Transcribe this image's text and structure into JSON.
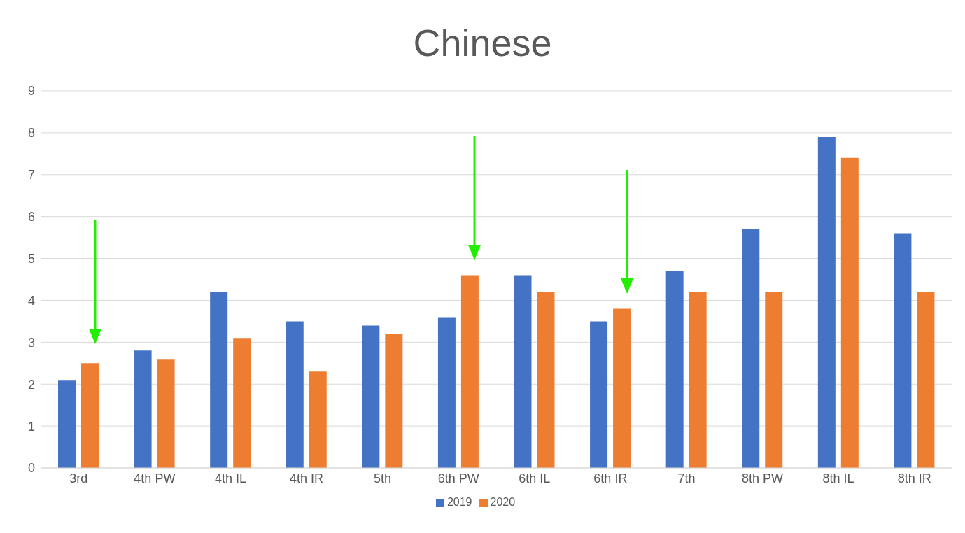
{
  "chart_data": {
    "type": "bar",
    "title": "Chinese",
    "categories": [
      "3rd",
      "4th PW",
      "4th IL",
      "4th IR",
      "5th",
      "6th PW",
      "6th IL",
      "6th IR",
      "7th",
      "8th PW",
      "8th IL",
      "8th IR"
    ],
    "series": [
      {
        "name": "2019",
        "color": "#4472c4",
        "values": [
          2.1,
          2.8,
          4.2,
          3.5,
          3.4,
          3.6,
          4.6,
          3.5,
          4.7,
          5.7,
          7.9,
          5.6
        ]
      },
      {
        "name": "2020",
        "color": "#ed7d31",
        "values": [
          2.5,
          2.6,
          3.1,
          2.3,
          3.2,
          4.6,
          4.2,
          3.8,
          4.2,
          4.2,
          7.4,
          4.2
        ]
      }
    ],
    "ylim": [
      0,
      9
    ],
    "yticks": [
      0,
      1,
      2,
      3,
      4,
      5,
      6,
      7,
      8,
      9
    ],
    "grid": "y",
    "legend": "bottom"
  }
}
